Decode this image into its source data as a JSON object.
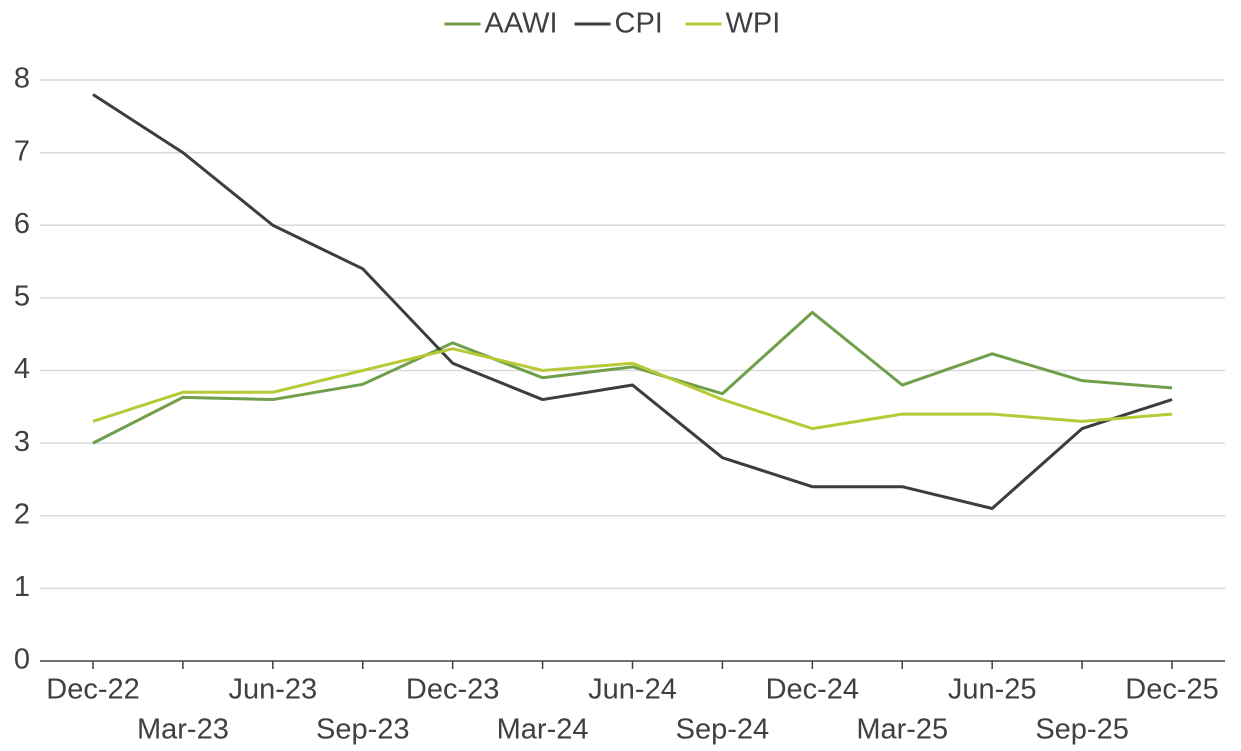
{
  "chart_data": {
    "type": "line",
    "categories": [
      "Dec-22",
      "Mar-23",
      "Jun-23",
      "Sep-23",
      "Dec-23",
      "Mar-24",
      "Jun-24",
      "Sep-24",
      "Dec-24",
      "Mar-25",
      "Jun-25",
      "Sep-25",
      "Dec-25"
    ],
    "series": [
      {
        "name": "AAWI",
        "color": "#6f9f4b",
        "values": [
          3.0,
          3.63,
          3.6,
          3.81,
          4.38,
          3.9,
          4.05,
          3.68,
          4.8,
          3.8,
          4.23,
          3.86,
          3.76
        ]
      },
      {
        "name": "CPI",
        "color": "#3d3d3d",
        "values": [
          7.8,
          7.0,
          6.0,
          5.4,
          4.1,
          3.6,
          3.8,
          2.8,
          2.4,
          2.4,
          2.1,
          3.2,
          3.6
        ]
      },
      {
        "name": "WPI",
        "color": "#b7c934",
        "values": [
          3.3,
          3.7,
          3.7,
          4.0,
          4.3,
          4.0,
          4.1,
          3.6,
          3.2,
          3.4,
          3.4,
          3.3,
          3.4
        ]
      }
    ],
    "ylim": [
      0,
      8
    ],
    "yticks": [
      0,
      1,
      2,
      3,
      4,
      5,
      6,
      7,
      8
    ],
    "grid": true,
    "legend": "top"
  }
}
